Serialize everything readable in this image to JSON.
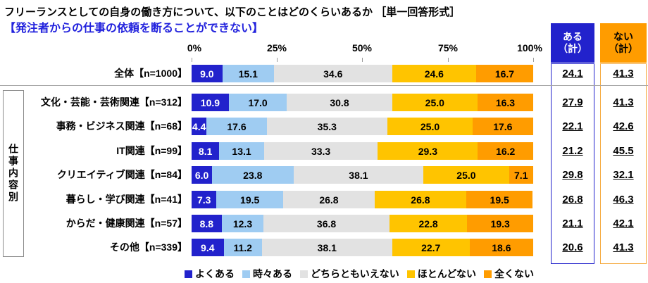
{
  "title": "フリーランスとしての自身の働き方について、以下のことはどのくらいあるか ［単一回答形式］",
  "subtitle": "【発注者からの仕事の依頼を断ることができない】",
  "group_label": "仕事内容別",
  "axis_ticks": [
    "0%",
    "25%",
    "50%",
    "75%",
    "100%"
  ],
  "summary_headers": {
    "aru_line1": "ある",
    "aru_line2": "（計）",
    "nai_line1": "ない",
    "nai_line2": "（計）"
  },
  "legend": [
    "よくある",
    "時々ある",
    "どちらともいえない",
    "ほとんどない",
    "全くない"
  ],
  "colors": {
    "segments": [
      "#2222cc",
      "#9fccf2",
      "#e2e2e2",
      "#ffc400",
      "#ff9c00"
    ],
    "segment_text": [
      "#ffffff",
      "#000000",
      "#000000",
      "#000000",
      "#000000"
    ],
    "subtitle": "#2222dd",
    "aru_header_bg": "#2222cc",
    "aru_header_text": "#ffffff",
    "nai_header_bg": "#ff9c00",
    "nai_header_text": "#000000",
    "aru_border": "#2222cc",
    "nai_border": "#f5a93c"
  },
  "chart_data": {
    "type": "bar",
    "stacked": true,
    "orientation": "horizontal",
    "unit": "%",
    "xlim": [
      0,
      100
    ],
    "x_ticks": [
      0,
      25,
      50,
      75,
      100
    ],
    "categories": [
      "全体【n=1000】",
      "文化・芸能・芸術関連【n=312】",
      "事務・ビジネス関連【n=68】",
      "IT関連【n=99】",
      "クリエイティブ関連【n=84】",
      "暮らし・学び関連【n=41】",
      "からだ・健康関連【n=57】",
      "その他【n=339】"
    ],
    "series": [
      {
        "name": "よくある",
        "values": [
          9.0,
          10.9,
          4.4,
          8.1,
          6.0,
          7.3,
          8.8,
          9.4
        ]
      },
      {
        "name": "時々ある",
        "values": [
          15.1,
          17.0,
          17.6,
          13.1,
          23.8,
          19.5,
          12.3,
          11.2
        ]
      },
      {
        "name": "どちらともいえない",
        "values": [
          34.6,
          30.8,
          35.3,
          33.3,
          38.1,
          26.8,
          36.8,
          38.1
        ]
      },
      {
        "name": "ほとんどない",
        "values": [
          24.6,
          25.0,
          25.0,
          29.3,
          25.0,
          26.8,
          22.8,
          22.7
        ]
      },
      {
        "name": "全くない",
        "values": [
          16.7,
          16.3,
          17.6,
          16.2,
          7.1,
          19.5,
          19.3,
          18.6
        ]
      }
    ],
    "totals": {
      "aru": [
        24.1,
        27.9,
        22.1,
        21.2,
        29.8,
        26.8,
        21.1,
        20.6
      ],
      "nai": [
        41.3,
        41.3,
        42.6,
        45.5,
        32.1,
        46.3,
        42.1,
        41.3
      ]
    }
  }
}
